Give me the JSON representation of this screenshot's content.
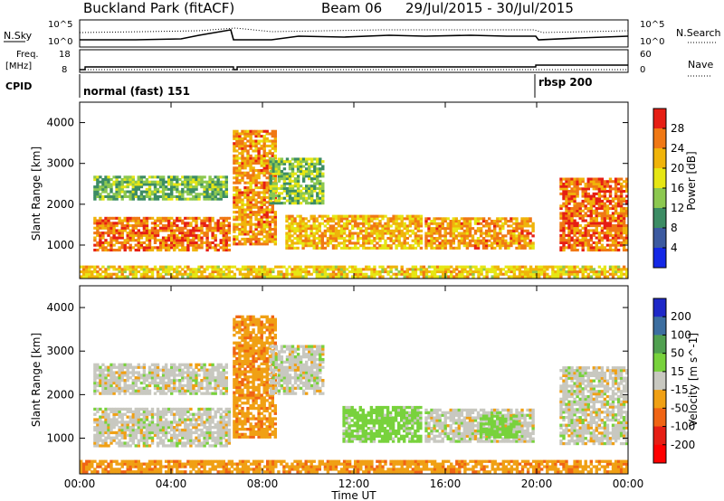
{
  "header": {
    "site": "Buckland Park (fitACF)",
    "beam": "Beam 06",
    "date_range": "29/Jul/2015 - 30/Jul/2015"
  },
  "top_panels": {
    "nsky_label": "N.Sky",
    "nsearch_label": "N.Search",
    "freq_label_line1": "Freq.",
    "freq_label_line2": "[MHz]",
    "nave_label": "Nave",
    "cpid_label": "CPID",
    "noise_ticks": [
      "10^5",
      "10^0"
    ],
    "freq_ticks": [
      "18",
      "8"
    ],
    "nave_ticks": [
      "60",
      "0"
    ],
    "cpid_segments": [
      {
        "label": "normal (fast) 151",
        "start_hour": 0
      },
      {
        "label": "rbsp 200",
        "start_hour": 20
      }
    ]
  },
  "chart_data": [
    {
      "type": "heatmap",
      "name": "power-panel",
      "ylabel": "Slant Range [km]",
      "xlabel": "Time UT",
      "x_ticks": [
        "00:00",
        "04:00",
        "08:00",
        "12:00",
        "16:00",
        "20:00",
        "00:00"
      ],
      "x_tick_hours": [
        0,
        4,
        8,
        12,
        16,
        20,
        24
      ],
      "y_ticks": [
        1000,
        2000,
        3000,
        4000
      ],
      "xlim": [
        0,
        24
      ],
      "ylim": [
        180,
        4500
      ],
      "colorbar": {
        "label": "Power [dB]",
        "ticks": [
          4,
          8,
          12,
          16,
          20,
          24,
          28
        ],
        "range": [
          0,
          32
        ],
        "colors": [
          "#1428e6",
          "#3c5aa0",
          "#3c8c64",
          "#8cc850",
          "#e6e614",
          "#f0b40a",
          "#f07814",
          "#e61e14"
        ]
      },
      "echo_regions": [
        {
          "t0": 0.6,
          "t1": 6.5,
          "r0": 850,
          "r1": 1650,
          "level": 26
        },
        {
          "t0": 0.6,
          "t1": 6.4,
          "r0": 2100,
          "r1": 2700,
          "level": 13
        },
        {
          "t0": 6.7,
          "t1": 8.5,
          "r0": 1000,
          "r1": 3800,
          "level": 24
        },
        {
          "t0": 8.3,
          "t1": 10.6,
          "r0": 2000,
          "r1": 3100,
          "level": 14
        },
        {
          "t0": 9.0,
          "t1": 14.9,
          "r0": 900,
          "r1": 1700,
          "level": 22
        },
        {
          "t0": 15.1,
          "t1": 19.8,
          "r0": 900,
          "r1": 1650,
          "level": 24
        },
        {
          "t0": 21.0,
          "t1": 24.0,
          "r0": 850,
          "r1": 2600,
          "level": 26
        },
        {
          "t0": 0.0,
          "t1": 24.0,
          "r0": 200,
          "r1": 500,
          "level": 20
        }
      ]
    },
    {
      "type": "heatmap",
      "name": "velocity-panel",
      "ylabel": "Slant Range [km]",
      "xlabel": "Time UT",
      "x_ticks": [
        "00:00",
        "04:00",
        "08:00",
        "12:00",
        "16:00",
        "20:00",
        "00:00"
      ],
      "x_tick_hours": [
        0,
        4,
        8,
        12,
        16,
        20,
        24
      ],
      "y_ticks": [
        1000,
        2000,
        3000,
        4000
      ],
      "xlim": [
        0,
        24
      ],
      "ylim": [
        180,
        4500
      ],
      "colorbar": {
        "label": "Velocity [m s^-1]",
        "ticks": [
          200,
          100,
          50,
          15,
          -15,
          -50,
          -100,
          -200
        ],
        "colors": [
          "#1e28c8",
          "#3c6ea0",
          "#50a050",
          "#78d23c",
          "#c8c8c0",
          "#f0a014",
          "#f06414",
          "#e61e14",
          "#ff0000"
        ]
      },
      "echo_regions": [
        {
          "t0": 0.6,
          "t1": 6.5,
          "r0": 800,
          "r1": 1650,
          "velocity": 0
        },
        {
          "t0": 0.6,
          "t1": 6.4,
          "r0": 2000,
          "r1": 2700,
          "velocity": 0
        },
        {
          "t0": 6.7,
          "t1": 8.5,
          "r0": 1000,
          "r1": 3800,
          "velocity": -40
        },
        {
          "t0": 8.3,
          "t1": 10.6,
          "r0": 2000,
          "r1": 3100,
          "velocity": 0
        },
        {
          "t0": 11.5,
          "t1": 14.9,
          "r0": 900,
          "r1": 1700,
          "velocity": 30
        },
        {
          "t0": 15.1,
          "t1": 19.8,
          "r0": 900,
          "r1": 1650,
          "velocity": 0
        },
        {
          "t0": 17.5,
          "t1": 19.3,
          "r0": 1000,
          "r1": 1500,
          "velocity": 30
        },
        {
          "t0": 21.0,
          "t1": 24.0,
          "r0": 850,
          "r1": 2600,
          "velocity": 0
        },
        {
          "t0": 0.0,
          "t1": 24.0,
          "r0": 200,
          "r1": 500,
          "velocity": -40
        }
      ]
    }
  ]
}
